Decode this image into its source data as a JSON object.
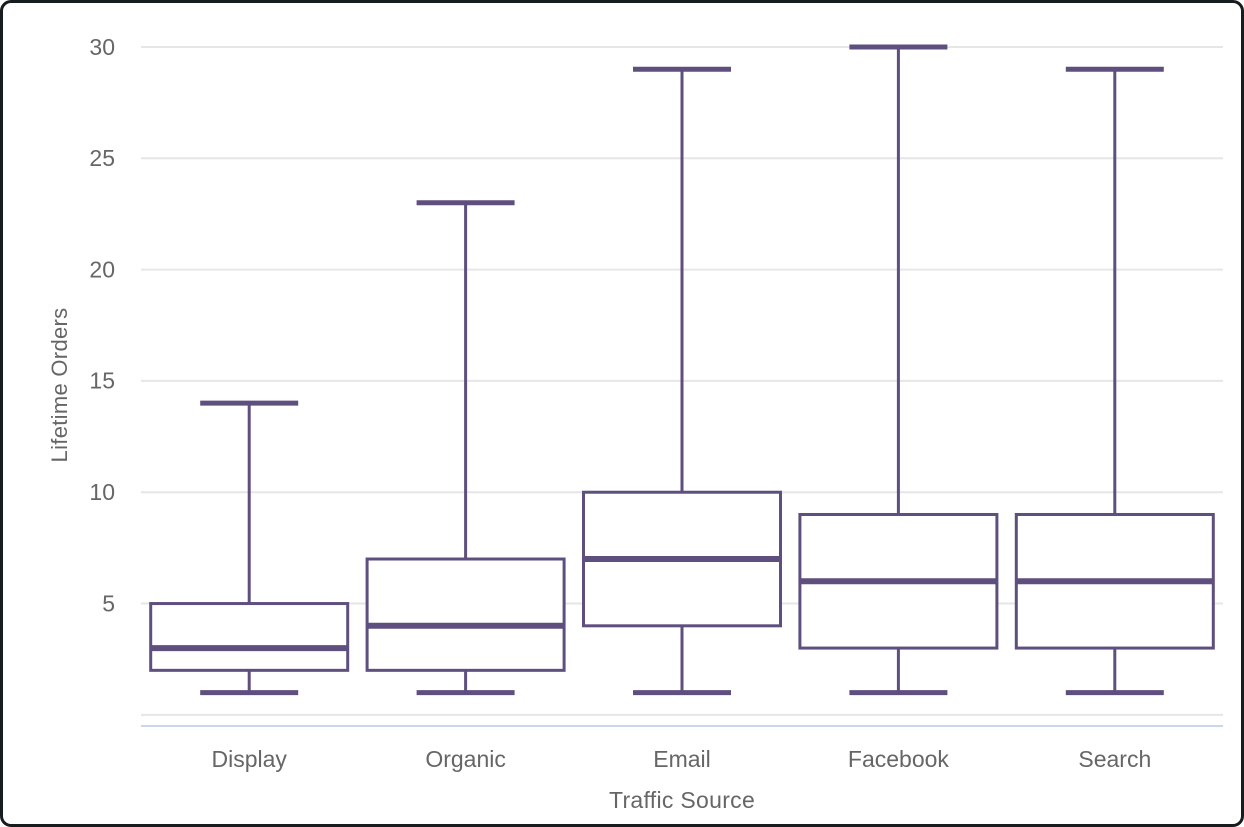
{
  "window": {
    "background": "#ffffff",
    "frame_border_color": "#171c1e"
  },
  "chart_data": {
    "type": "boxplot",
    "xlabel": "Traffic Source",
    "ylabel": "Lifetime Orders",
    "categories": [
      "Display",
      "Organic",
      "Email",
      "Facebook",
      "Search"
    ],
    "series": [
      {
        "name": "Display",
        "min": 1,
        "q1": 2,
        "median": 3,
        "q3": 5,
        "max": 14
      },
      {
        "name": "Organic",
        "min": 1,
        "q1": 2,
        "median": 4,
        "q3": 7,
        "max": 23
      },
      {
        "name": "Email",
        "min": 1,
        "q1": 4,
        "median": 7,
        "q3": 10,
        "max": 29
      },
      {
        "name": "Facebook",
        "min": 1,
        "q1": 3,
        "median": 6,
        "q3": 9,
        "max": 30
      },
      {
        "name": "Search",
        "min": 1,
        "q1": 3,
        "median": 6,
        "q3": 9,
        "max": 29
      }
    ],
    "yticks": [
      5,
      10,
      15,
      20,
      25,
      30
    ],
    "gridlines": [
      0,
      5,
      10,
      15,
      20,
      25,
      30
    ],
    "ylim": [
      -0.5,
      31.3
    ],
    "grid": "horizontal-only",
    "legend": "none",
    "colors": {
      "box_stroke": "#5E4F7F",
      "box_fill": "#FFFFFF",
      "gridline": "#E6E6E6",
      "x_axis_line": "#CCD6EB",
      "label_text": "#666666"
    }
  }
}
